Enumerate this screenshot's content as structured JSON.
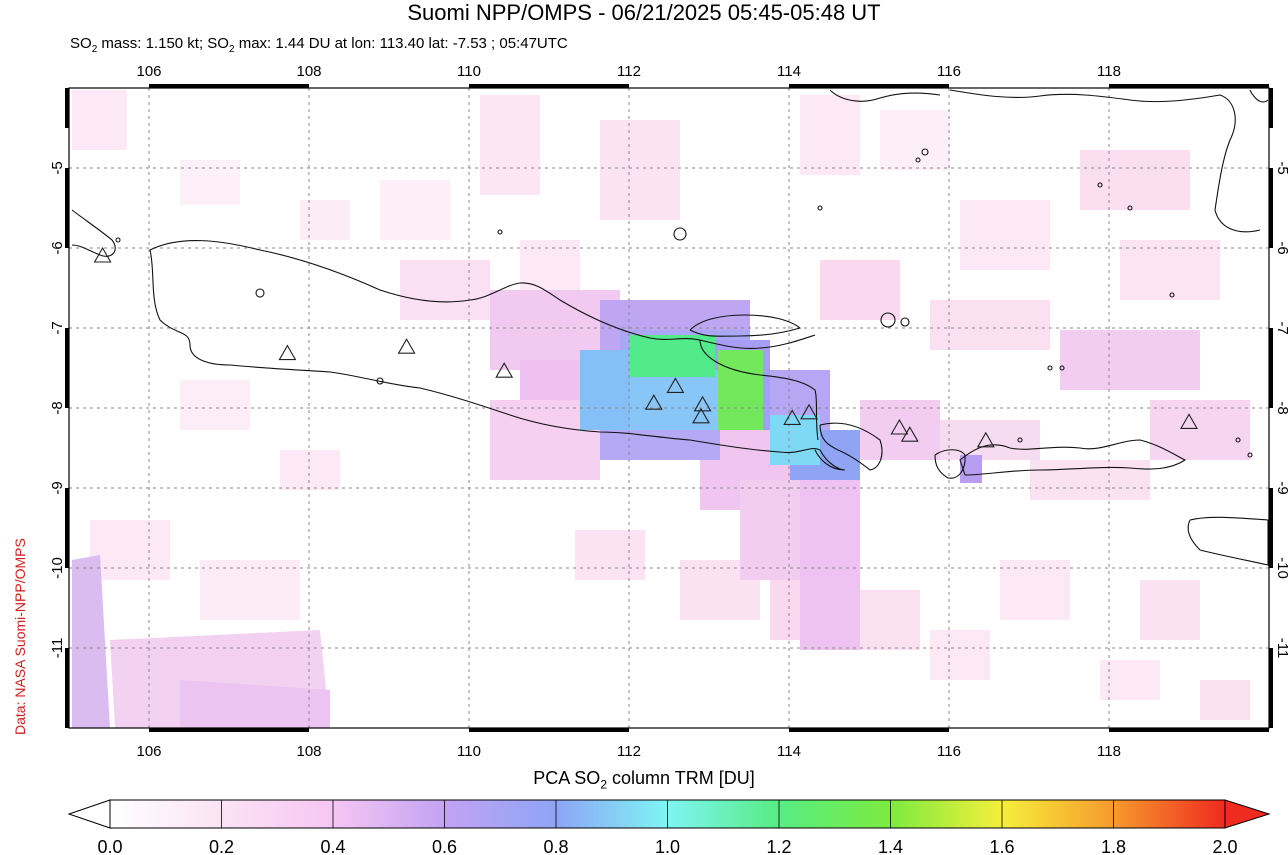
{
  "title": "Suomi NPP/OMPS - 06/21/2025 05:45-05:48 UT",
  "subtitle": {
    "prefix": "SO",
    "sub": "2",
    "mid": " mass: 1.150 kt; SO",
    "sub2": "2",
    "rest": " max: 1.44 DU at lon: 113.40 lat: -7.53 ; 05:47UTC"
  },
  "credit": "Data: NASA Suomi-NPP/OMPS",
  "colorbar": {
    "label_prefix": "PCA SO",
    "label_sub": "2",
    "label_suffix": " column TRM [DU]",
    "ticks": [
      "0.0",
      "0.2",
      "0.4",
      "0.6",
      "0.8",
      "1.0",
      "1.2",
      "1.4",
      "1.6",
      "1.8",
      "2.0"
    ]
  },
  "map": {
    "lon_range": [
      105,
      120
    ],
    "lat_range": [
      -12,
      -4
    ],
    "lon_ticks": [
      "106",
      "108",
      "110",
      "112",
      "114",
      "116",
      "118"
    ],
    "lat_ticks": [
      "-5",
      "-6",
      "-7",
      "-8",
      "-9",
      "-10",
      "-11"
    ],
    "volcano_count": 14,
    "so2_peak_du": 1.44,
    "so2_peak_lon": 113.4,
    "so2_peak_lat": -7.53
  }
}
